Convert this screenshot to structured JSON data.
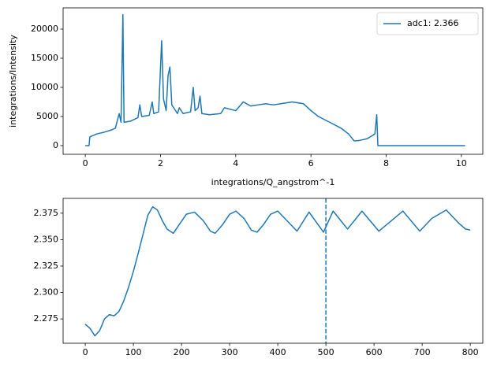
{
  "chart_data": [
    {
      "type": "line",
      "xlabel": "integrations/Q_angstrom^-1",
      "ylabel": "integrations/Intensity",
      "x": [
        0,
        0.1,
        0.12,
        0.3,
        0.5,
        0.7,
        0.8,
        0.9,
        0.95,
        1.0,
        1.03,
        1.2,
        1.4,
        1.45,
        1.5,
        1.7,
        1.78,
        1.82,
        1.95,
        2.03,
        2.08,
        2.15,
        2.2,
        2.25,
        2.3,
        2.45,
        2.5,
        2.6,
        2.8,
        2.87,
        2.92,
        3.0,
        3.05,
        3.1,
        3.3,
        3.6,
        3.7,
        4.0,
        4.2,
        4.4,
        4.6,
        4.8,
        5.0,
        5.2,
        5.5,
        5.8,
        6.0,
        6.2,
        6.5,
        6.8,
        7.0,
        7.15,
        7.3,
        7.5,
        7.7,
        7.75,
        7.78,
        10.1
      ],
      "series": [
        {
          "name": "adc1: 2.366",
          "color": "#1f77b4",
          "values": [
            0,
            0,
            1500,
            2000,
            2300,
            2700,
            3000,
            5500,
            4000,
            22500,
            4000,
            4200,
            4800,
            7000,
            5000,
            5200,
            7500,
            5500,
            5800,
            18000,
            8000,
            6000,
            12000,
            13500,
            7000,
            5500,
            6500,
            5500,
            5800,
            10000,
            6000,
            6500,
            8500,
            5500,
            5300,
            5500,
            6500,
            6000,
            7500,
            6800,
            7000,
            7200,
            7000,
            7200,
            7500,
            7200,
            6000,
            5000,
            4000,
            3000,
            2000,
            800,
            900,
            1200,
            2000,
            5300,
            0,
            0
          ]
        }
      ],
      "xlim": [
        -0.59,
        10.57
      ],
      "ylim": [
        -1490,
        23650
      ],
      "xticks": [
        0,
        2,
        4,
        6,
        8,
        10
      ],
      "yticks": [
        0,
        5000,
        10000,
        15000,
        20000
      ],
      "legend": "upper right"
    },
    {
      "type": "line",
      "x": [
        0,
        10,
        20,
        30,
        40,
        50,
        60,
        70,
        80,
        90,
        100,
        110,
        120,
        130,
        140,
        150,
        160,
        170,
        183,
        195,
        210,
        227,
        245,
        260,
        270,
        285,
        300,
        313,
        330,
        345,
        357,
        370,
        385,
        400,
        440,
        465,
        495,
        515,
        545,
        575,
        610,
        660,
        695,
        720,
        750,
        775,
        790,
        800
      ],
      "series": [
        {
          "color": "#1f77b4",
          "values": [
            2.27,
            2.266,
            2.259,
            2.264,
            2.275,
            2.279,
            2.278,
            2.282,
            2.292,
            2.305,
            2.32,
            2.337,
            2.355,
            2.373,
            2.381,
            2.378,
            2.368,
            2.36,
            2.356,
            2.364,
            2.374,
            2.376,
            2.368,
            2.358,
            2.356,
            2.364,
            2.374,
            2.377,
            2.37,
            2.359,
            2.357,
            2.364,
            2.374,
            2.377,
            2.358,
            2.376,
            2.357,
            2.377,
            2.36,
            2.377,
            2.358,
            2.377,
            2.358,
            2.37,
            2.378,
            2.366,
            2.36,
            2.359
          ]
        }
      ],
      "xlim": [
        -46,
        826
      ],
      "ylim": [
        2.252,
        2.389
      ],
      "xticks": [
        0,
        100,
        200,
        300,
        400,
        500,
        600,
        700,
        800
      ],
      "yticks": [
        2.275,
        {
          "value": 2.3,
          "label": "2.300"
        },
        2.325,
        {
          "value": 2.35,
          "label": "2.350"
        },
        2.375
      ],
      "vlines": [
        500
      ],
      "vline_color": "#1f77b4"
    }
  ]
}
